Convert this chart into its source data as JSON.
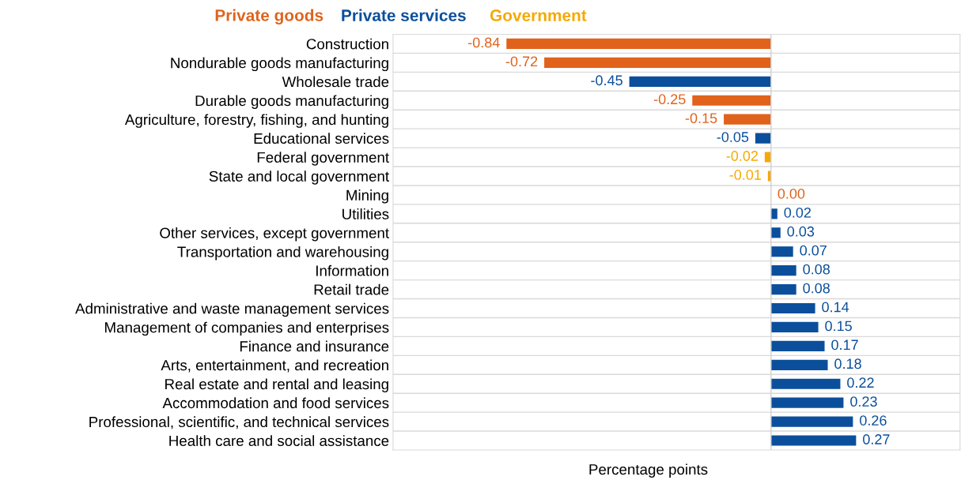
{
  "chart_data": {
    "type": "bar",
    "orientation": "horizontal",
    "stacked": true,
    "xlabel": "Percentage points",
    "legend": "top",
    "grid": "y",
    "tick_labels": "y",
    "xlim": [
      -1.2,
      0.6
    ],
    "categories": [
      "Construction",
      "Nondurable goods manufacturing",
      "Wholesale trade",
      "Durable goods manufacturing",
      "Agriculture, forestry, fishing, and hunting",
      "Educational services",
      "Federal government",
      "State and local government",
      "Mining",
      "Utilities",
      "Other services, except government",
      "Transportation and warehousing",
      "Information",
      "Retail trade",
      "Administrative and waste management services",
      "Management of companies and enterprises",
      "Finance and insurance",
      "Arts, entertainment, and recreation",
      "Real estate and rental and leasing",
      "Accommodation and food services",
      "Professional, scientific, and technical services",
      "Health care and social assistance"
    ],
    "series": [
      {
        "name": "Private goods",
        "color": "#e0621b",
        "values": [
          -0.84,
          -0.72,
          null,
          -0.25,
          -0.15,
          null,
          null,
          null,
          0,
          null,
          null,
          null,
          null,
          null,
          null,
          null,
          null,
          null,
          null,
          null,
          null,
          null
        ],
        "value_labels": [
          "-0.84",
          "-0.72",
          null,
          "-0.25",
          "-0.15",
          null,
          null,
          null,
          "0.00",
          null,
          null,
          null,
          null,
          null,
          null,
          null,
          null,
          null,
          null,
          null,
          null,
          null
        ]
      },
      {
        "name": "Private services",
        "color": "#0b4f9c",
        "values": [
          null,
          null,
          -0.45,
          null,
          null,
          -0.05,
          null,
          null,
          null,
          0.02,
          0.03,
          0.07,
          0.08,
          0.08,
          0.14,
          0.15,
          0.17,
          0.18,
          0.22,
          0.23,
          0.26,
          0.27
        ],
        "value_labels": [
          null,
          null,
          "-0.45",
          null,
          null,
          "-0.05",
          null,
          null,
          null,
          "0.02",
          "0.03",
          "0.07",
          "0.08",
          "0.08",
          "0.14",
          "0.15",
          "0.17",
          "0.18",
          "0.22",
          "0.23",
          "0.26",
          "0.27"
        ]
      },
      {
        "name": "Government",
        "color": "#f5a800",
        "values": [
          null,
          null,
          null,
          null,
          null,
          null,
          -0.02,
          -0.01,
          null,
          null,
          null,
          null,
          null,
          null,
          null,
          null,
          null,
          null,
          null,
          null,
          null,
          null
        ],
        "value_labels": [
          null,
          null,
          null,
          null,
          null,
          null,
          "-0.02",
          "-0.01",
          null,
          null,
          null,
          null,
          null,
          null,
          null,
          null,
          null,
          null,
          null,
          null,
          null,
          null
        ]
      }
    ]
  }
}
